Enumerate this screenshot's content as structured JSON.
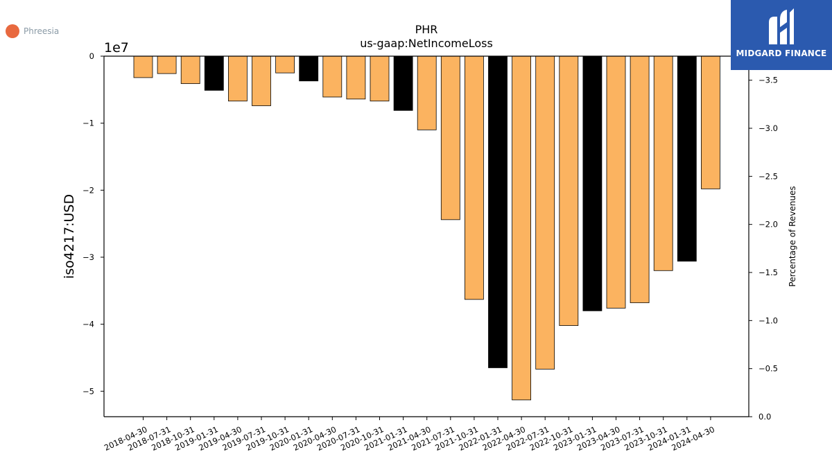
{
  "branding": {
    "company_logo_text": "Phreesia",
    "publisher_logo_text": "MIDGARD FINANCE",
    "company_color": "#e8693f",
    "publisher_color": "#2b5aaf"
  },
  "chart_data": {
    "type": "bar",
    "title": "PHR",
    "subtitle": "us-gaap:NetIncomeLoss",
    "ylabel": "iso4217:USD",
    "y2label": "Percentage of Revenues",
    "offset_text": "1e7",
    "categories": [
      "2018-04-30",
      "2018-07-31",
      "2018-10-31",
      "2019-01-31",
      "2019-04-30",
      "2019-07-31",
      "2019-10-31",
      "2020-01-31",
      "2020-04-30",
      "2020-07-31",
      "2020-10-31",
      "2021-01-31",
      "2021-04-30",
      "2021-07-31",
      "2021-10-31",
      "2022-01-31",
      "2022-04-30",
      "2022-07-31",
      "2022-10-31",
      "2023-01-31",
      "2023-04-30",
      "2023-07-31",
      "2023-10-31",
      "2024-01-31",
      "2024-04-30"
    ],
    "values": [
      -3200000,
      -2600000,
      -4100000,
      -5100000,
      -6700000,
      -7400000,
      -2500000,
      -3700000,
      -6100000,
      -6400000,
      -6700000,
      -8100000,
      -11000000,
      -24400000,
      -36300000,
      -46500000,
      -51300000,
      -46700000,
      -40200000,
      -38000000,
      -37600000,
      -36800000,
      -32000000,
      -30600000,
      -19800000
    ],
    "bar_colors": [
      "#fbb360",
      "#fbb360",
      "#fbb360",
      "#000000",
      "#fbb360",
      "#fbb360",
      "#fbb360",
      "#000000",
      "#fbb360",
      "#fbb360",
      "#fbb360",
      "#000000",
      "#fbb360",
      "#fbb360",
      "#fbb360",
      "#000000",
      "#fbb360",
      "#fbb360",
      "#fbb360",
      "#000000",
      "#fbb360",
      "#fbb360",
      "#fbb360",
      "#000000",
      "#fbb360"
    ],
    "ylim": [
      -53800000,
      0
    ],
    "yticks": [
      0,
      -10000000,
      -20000000,
      -30000000,
      -40000000,
      -50000000
    ],
    "ytick_labels": [
      "0",
      "−1",
      "−2",
      "−3",
      "−4",
      "−5"
    ],
    "y2lim": [
      0.0,
      -3.75
    ],
    "y2ticks": [
      0.0,
      -0.5,
      -1.0,
      -1.5,
      -2.0,
      -2.5,
      -3.0,
      -3.5
    ],
    "y2tick_labels": [
      "0.0",
      "−0.5",
      "−1.0",
      "−1.5",
      "−2.0",
      "−2.5",
      "−3.0",
      "−3.5"
    ],
    "grid": false,
    "legend": "none"
  }
}
